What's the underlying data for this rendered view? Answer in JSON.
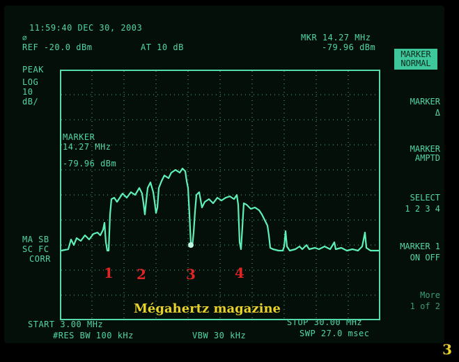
{
  "status": {
    "timestamp": "11:59:40 DEC 30, 2003",
    "ref_level": "REF -20.0 dBm",
    "attenuation": "AT 10 dB",
    "marker_readout_line1": "MKR 14.27 MHz",
    "marker_readout_line2": "-79.96 dBm"
  },
  "left_panel": {
    "detector": "PEAK",
    "scale_line1": "LOG",
    "scale_line2": "10",
    "scale_line3": "dB/",
    "mode_line1": "MA SB",
    "mode_line2": "SC FC",
    "mode_line3": "CORR"
  },
  "marker_box": {
    "title": "MARKER",
    "freq": "14.27 MHz",
    "level": "-79.96 dBm"
  },
  "softkeys": {
    "marker_normal": "MARKER\nNORMAL",
    "marker_delta_1": "MARKER",
    "marker_delta_2": "Δ",
    "marker_amptd": "MARKER\nAMPTD",
    "select_label": "SELECT",
    "select_options": "1 2 3 4",
    "marker_onoff_label": "MARKER 1",
    "marker_onoff_value": "ON OFF",
    "more_line1": "More",
    "more_line2": "1 of 2"
  },
  "footer": {
    "start": "START 3.00 MHz",
    "stop": "STOP 30.00 MHz",
    "rbw": "#RES BW 100 kHz",
    "vbw": "VBW 30 kHz",
    "sweep": "SWP 27.0 msec"
  },
  "annotations": {
    "n1": "1",
    "n2": "2",
    "n3": "3",
    "n4": "4",
    "watermark": "Mégahertz magazine",
    "page_number": "3"
  },
  "colors": {
    "trace": "#5ff0b8",
    "text": "#4fd6a8",
    "annotation_numbers": "#e02525",
    "watermark": "#e8d12a"
  }
}
